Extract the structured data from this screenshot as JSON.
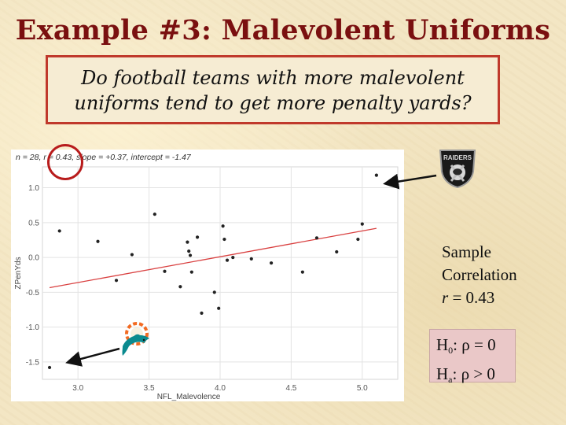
{
  "slide": {
    "title": "Example #3: Malevolent Uniforms",
    "question_line1": "Do football teams with more malevolent",
    "question_line2": "uniforms tend to get more penalty yards?"
  },
  "sample": {
    "line1": "Sample",
    "line2": "Correlation",
    "r_symbol": "r",
    "r_eq": "=  0.43"
  },
  "hypotheses": {
    "h0_H": "H",
    "h0_sub": "0",
    "h0_rest": ": ρ = 0",
    "ha_H": "H",
    "ha_sub": "a",
    "ha_rest": ": ρ > 0"
  },
  "logos": {
    "raiders_text": "RAIDERS",
    "raiders_icon": "raiders-logo-icon",
    "dolphins_icon": "dolphins-logo-icon"
  },
  "colors": {
    "title": "#7a1010",
    "box_border": "#c0392b",
    "regression_line": "#d94040",
    "points": "#222222",
    "hyp_bg": "#eac8c8"
  },
  "chart_data": {
    "type": "scatter",
    "subtitle": "n = 28, r = 0.43, slope = +0.37, intercept = -1.47",
    "xlabel": "NFL_Malevolence",
    "ylabel": "ZPenYds",
    "xlim": [
      2.75,
      5.25
    ],
    "ylim": [
      -1.75,
      1.3
    ],
    "xticks": [
      3.0,
      3.5,
      4.0,
      4.5,
      5.0
    ],
    "xtick_labels": [
      "3.0",
      "3.5",
      "4.0",
      "4.5",
      "5.0"
    ],
    "yticks": [
      -1.5,
      -1.0,
      -0.5,
      0.0,
      0.5,
      1.0
    ],
    "ytick_labels": [
      "-1.5",
      "-1.0",
      "-0.5",
      "0.0",
      "0.5",
      "1.0"
    ],
    "grid": true,
    "regression": {
      "slope": 0.37,
      "intercept": -1.47
    },
    "points": [
      {
        "x": 2.8,
        "y": -1.58
      },
      {
        "x": 2.87,
        "y": 0.38
      },
      {
        "x": 3.14,
        "y": 0.23
      },
      {
        "x": 3.27,
        "y": -0.33
      },
      {
        "x": 3.38,
        "y": 0.04
      },
      {
        "x": 3.54,
        "y": 0.62
      },
      {
        "x": 3.61,
        "y": -0.2
      },
      {
        "x": 3.72,
        "y": -0.42
      },
      {
        "x": 3.77,
        "y": 0.22
      },
      {
        "x": 3.78,
        "y": 0.09
      },
      {
        "x": 3.79,
        "y": 0.03
      },
      {
        "x": 3.8,
        "y": -0.21
      },
      {
        "x": 3.84,
        "y": 0.29
      },
      {
        "x": 3.87,
        "y": -0.8
      },
      {
        "x": 3.96,
        "y": -0.5
      },
      {
        "x": 3.99,
        "y": -0.73
      },
      {
        "x": 4.02,
        "y": 0.45
      },
      {
        "x": 4.03,
        "y": 0.26
      },
      {
        "x": 4.05,
        "y": -0.04
      },
      {
        "x": 4.09,
        "y": 0.0
      },
      {
        "x": 4.22,
        "y": -0.02
      },
      {
        "x": 4.36,
        "y": -0.08
      },
      {
        "x": 4.58,
        "y": -0.21
      },
      {
        "x": 4.68,
        "y": 0.28
      },
      {
        "x": 4.82,
        "y": 0.08
      },
      {
        "x": 4.97,
        "y": 0.26
      },
      {
        "x": 5.0,
        "y": 0.48
      },
      {
        "x": 5.1,
        "y": 1.18
      }
    ]
  }
}
